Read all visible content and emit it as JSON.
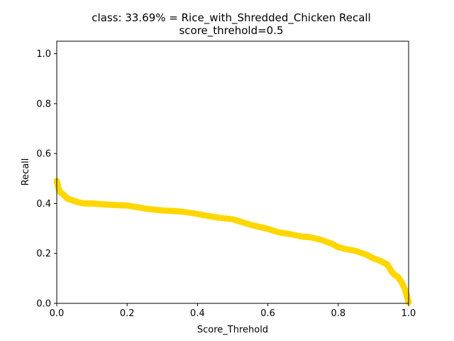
{
  "chart_data": {
    "type": "scatter",
    "title": "class: 33.69% = Rice_with_Shredded_Chicken Recall",
    "subtitle": "score_threhold=0.5",
    "xlabel": "Score_Threhold",
    "ylabel": "Recall",
    "xlim": [
      0.0,
      1.0
    ],
    "ylim": [
      0.0,
      1.05
    ],
    "xticks": [
      "0.0",
      "0.2",
      "0.4",
      "0.6",
      "0.8",
      "1.0"
    ],
    "yticks": [
      "0.0",
      "0.2",
      "0.4",
      "0.6",
      "0.8",
      "1.0"
    ],
    "grid": false,
    "legend": "none",
    "color": "#ffd700",
    "series": [
      {
        "x": [
          0.0,
          0.005,
          0.01,
          0.02,
          0.03,
          0.04,
          0.05,
          0.06,
          0.08,
          0.1,
          0.12,
          0.15,
          0.18,
          0.2,
          0.22,
          0.25,
          0.28,
          0.3,
          0.33,
          0.36,
          0.4,
          0.43,
          0.46,
          0.5,
          0.52,
          0.55,
          0.58,
          0.6,
          0.63,
          0.66,
          0.7,
          0.72,
          0.75,
          0.78,
          0.8,
          0.82,
          0.85,
          0.88,
          0.9,
          0.92,
          0.94,
          0.95,
          0.96,
          0.97,
          0.98,
          0.99,
          0.995,
          1.0
        ],
        "y": [
          0.49,
          0.46,
          0.445,
          0.435,
          0.42,
          0.415,
          0.41,
          0.405,
          0.4,
          0.4,
          0.398,
          0.395,
          0.393,
          0.392,
          0.387,
          0.38,
          0.375,
          0.372,
          0.37,
          0.367,
          0.358,
          0.35,
          0.343,
          0.337,
          0.328,
          0.315,
          0.305,
          0.298,
          0.285,
          0.278,
          0.267,
          0.265,
          0.255,
          0.24,
          0.225,
          0.218,
          0.21,
          0.195,
          0.18,
          0.17,
          0.155,
          0.13,
          0.115,
          0.105,
          0.085,
          0.055,
          0.03,
          0.005
        ]
      }
    ]
  }
}
